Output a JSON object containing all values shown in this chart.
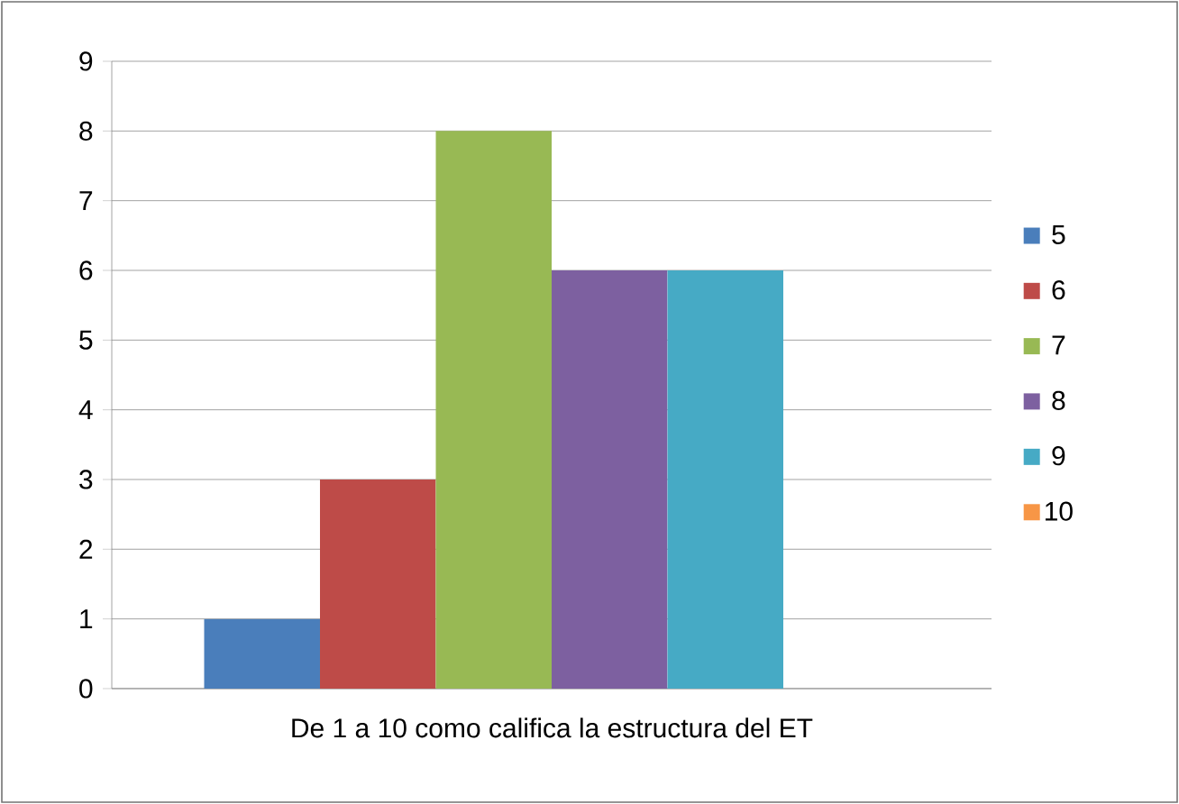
{
  "chart_data": {
    "type": "bar",
    "categories": [
      "De 1 a 10 como califica la estructura del ET"
    ],
    "series": [
      {
        "name": "5",
        "color": "#4a7ebb",
        "values": [
          1
        ]
      },
      {
        "name": "6",
        "color": "#be4b48",
        "values": [
          3
        ]
      },
      {
        "name": "7",
        "color": "#98b954",
        "values": [
          8
        ]
      },
      {
        "name": "8",
        "color": "#7d60a0",
        "values": [
          6
        ]
      },
      {
        "name": "9",
        "color": "#46aac5",
        "values": [
          6
        ]
      },
      {
        "name": "10",
        "color": "#f79646",
        "values": [
          0
        ]
      }
    ],
    "ylim": [
      0,
      9
    ],
    "yticks": [
      0,
      1,
      2,
      3,
      4,
      5,
      6,
      7,
      8,
      9
    ],
    "grid": "y",
    "legend": "right"
  }
}
